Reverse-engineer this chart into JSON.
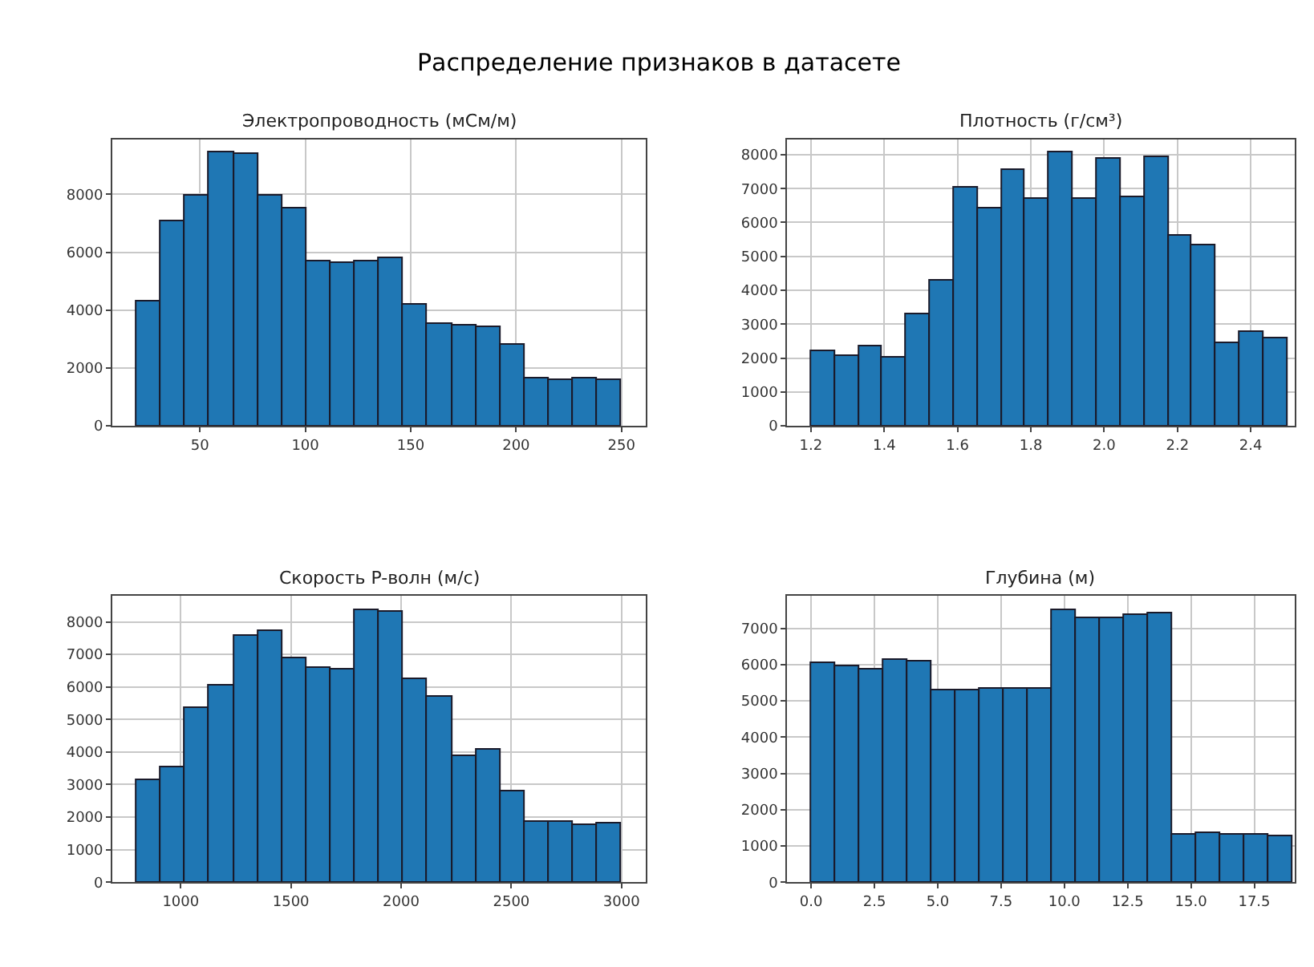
{
  "chart_data": [
    {
      "type": "other",
      "title": "Распределение признаков в датасете"
    },
    {
      "type": "histogram",
      "title": "Электропроводность (мСм/м)",
      "color": "#1f77b4",
      "grid": true,
      "bins": [
        20,
        31.5,
        43,
        54.5,
        66,
        77.5,
        89,
        100.5,
        112,
        123.5,
        135,
        146.5,
        158,
        169.5,
        181,
        192.5,
        204,
        215.5,
        227,
        238.5,
        250
      ],
      "values": [
        4300,
        7100,
        7950,
        9450,
        9400,
        7950,
        7500,
        5700,
        5650,
        5700,
        5780,
        4200,
        3500,
        3450,
        3430,
        2800,
        1620,
        1580,
        1650,
        1600
      ],
      "xlim": [
        8.5,
        261.5
      ],
      "xticks": [
        50,
        100,
        150,
        200,
        250
      ],
      "ylim": [
        0,
        9900
      ],
      "yticks": [
        0,
        2000,
        4000,
        6000,
        8000
      ]
    },
    {
      "type": "histogram",
      "title": "Плотность (г/см³)",
      "color": "#1f77b4",
      "grid": true,
      "bins": [
        1.2,
        1.265,
        1.33,
        1.395,
        1.46,
        1.525,
        1.59,
        1.655,
        1.72,
        1.785,
        1.85,
        1.915,
        1.98,
        2.045,
        2.11,
        2.175,
        2.24,
        2.305,
        2.37,
        2.435,
        2.5
      ],
      "values": [
        2200,
        2050,
        2350,
        2000,
        3300,
        4300,
        7050,
        6400,
        7550,
        6700,
        8050,
        6700,
        7900,
        6750,
        7950,
        5600,
        5350,
        2450,
        2750,
        2600
      ],
      "xlim": [
        1.135,
        2.52
      ],
      "xticks": [
        1.2,
        1.4,
        1.6,
        1.8,
        {
          "value": 2,
          "label": "2.0"
        },
        2.2,
        2.4
      ],
      "ylim": [
        0,
        8450
      ],
      "yticks": [
        0,
        1000,
        2000,
        3000,
        4000,
        5000,
        6000,
        7000,
        8000
      ]
    },
    {
      "type": "histogram",
      "title": "Скорость P-волн (м/с)",
      "color": "#1f77b4",
      "grid": true,
      "bins": [
        800,
        910,
        1020,
        1130,
        1240,
        1350,
        1460,
        1570,
        1680,
        1790,
        1900,
        2010,
        2120,
        2230,
        2340,
        2450,
        2560,
        2670,
        2780,
        2890,
        3000
      ],
      "values": [
        3150,
        3550,
        5350,
        6050,
        7550,
        7700,
        6900,
        6600,
        6550,
        8350,
        8300,
        6250,
        5700,
        3850,
        4050,
        2800,
        1850,
        1850,
        1750,
        1800
      ],
      "xlim": [
        690,
        3110
      ],
      "xticks": [
        1000,
        1500,
        2000,
        2500,
        3000
      ],
      "ylim": [
        0,
        8800
      ],
      "yticks": [
        0,
        1000,
        2000,
        3000,
        4000,
        5000,
        6000,
        7000,
        8000
      ]
    },
    {
      "type": "histogram",
      "title": "Глубина (м)",
      "color": "#1f77b4",
      "grid": true,
      "bins": [
        0,
        0.95,
        1.9,
        2.85,
        3.8,
        4.75,
        5.7,
        6.65,
        7.6,
        8.55,
        9.5,
        10.45,
        11.4,
        12.35,
        13.3,
        14.25,
        15.2,
        16.15,
        17.1,
        18.05,
        19
      ],
      "values": [
        6050,
        5950,
        5850,
        6150,
        6100,
        5300,
        5300,
        5350,
        5350,
        5350,
        7500,
        7300,
        7300,
        7350,
        7400,
        1300,
        1350,
        1300,
        1300,
        1250
      ],
      "xlim": [
        -0.95,
        19.1
      ],
      "xticks": [
        {
          "value": 0,
          "label": "0.0"
        },
        2.5,
        {
          "value": 5,
          "label": "5.0"
        },
        7.5,
        {
          "value": 10,
          "label": "10.0"
        },
        12.5,
        {
          "value": 15,
          "label": "15.0"
        },
        17.5
      ],
      "ylim": [
        0,
        7900
      ],
      "yticks": [
        0,
        1000,
        2000,
        3000,
        4000,
        5000,
        6000,
        7000
      ]
    }
  ]
}
